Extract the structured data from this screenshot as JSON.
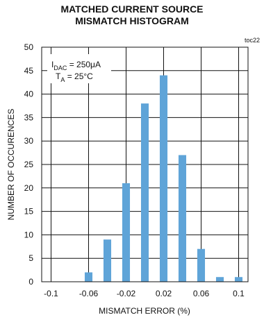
{
  "chart_data": {
    "type": "bar",
    "title_line1": "MATCHED CURRENT SOURCE",
    "title_line2": "MISMATCH HISTOGRAM",
    "figure_code": "toc22",
    "xlabel": "MISMATCH ERROR (%)",
    "ylabel": "NUMBER OF OCCURENCES",
    "xlim": [
      -0.11,
      0.11
    ],
    "ylim": [
      0,
      50
    ],
    "xticks": [
      "-0.1",
      "-0.06",
      "-0.02",
      "0.02",
      "0.06",
      "0.1"
    ],
    "yticks": [
      "0",
      "5",
      "10",
      "15",
      "20",
      "25",
      "30",
      "35",
      "40",
      "45",
      "50"
    ],
    "grid": true,
    "bar_color": "#5fa4d8",
    "x": [
      -0.1,
      -0.08,
      -0.06,
      -0.04,
      -0.02,
      0.0,
      0.02,
      0.04,
      0.06,
      0.08,
      0.1
    ],
    "values": [
      0,
      0,
      2,
      9,
      21,
      38,
      44,
      27,
      7,
      1,
      1
    ],
    "conditions": {
      "line1_main": "I",
      "line1_sub": "DAC",
      "line1_rest": " = 250μA",
      "line2_main": "T",
      "line2_sub": "A",
      "line2_rest": " = 25°C"
    }
  }
}
